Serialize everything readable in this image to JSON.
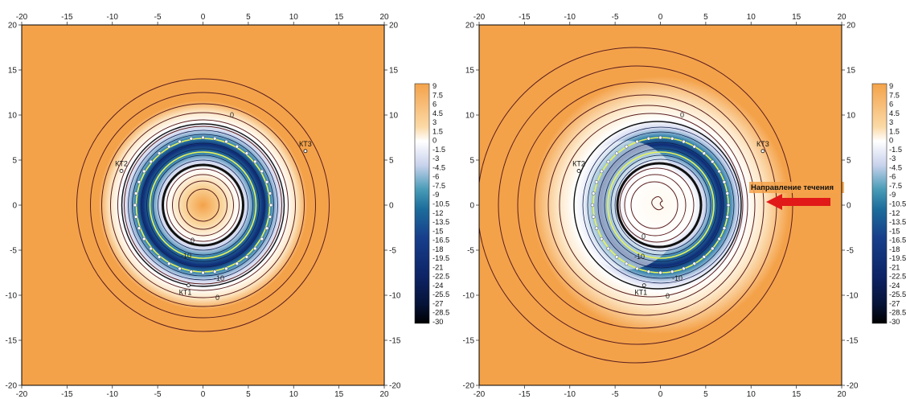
{
  "colors": {
    "background": "#F4A24A",
    "warm_light": "#FFF6E6",
    "white": "#FFFFFF",
    "blue_mid": "#2B7FA8",
    "blue_dark": "#0F2C76",
    "contour_dark": "#5A1E1E",
    "contour_zero": "#111111",
    "yellow_line": "#E8F25A",
    "arrow": "#E11919"
  },
  "chart_data": [
    {
      "type": "heatmap",
      "panel": "left",
      "xlim": [
        -20,
        20
      ],
      "ylim": [
        -20,
        20
      ],
      "x_ticks": [
        "-20",
        "-15",
        "-10",
        "-5",
        "0",
        "5",
        "10",
        "15",
        "20"
      ],
      "y_ticks": [
        "20",
        "15",
        "10",
        "5",
        "0",
        "-5",
        "-10",
        "-15",
        "-20"
      ],
      "field_center": [
        0,
        0
      ],
      "outer_radius": 11.5,
      "ring_radius": 7.5,
      "inner_radius": 4.5,
      "wells": {
        "count": 36,
        "radius": 7.5
      },
      "points": [
        {
          "label": "КТ1",
          "x": -1.6,
          "y": -8.9
        },
        {
          "label": "КТ2",
          "x": -9.0,
          "y": 3.8
        },
        {
          "label": "КТ3",
          "x": 11.3,
          "y": 6.0
        }
      ],
      "contour_labels": [
        "0",
        "0",
        "0",
        "-10",
        "-10"
      ],
      "annotation": ""
    },
    {
      "type": "heatmap",
      "panel": "right",
      "xlim": [
        -20,
        20
      ],
      "ylim": [
        -20,
        20
      ],
      "x_ticks": [
        "-20",
        "-15",
        "-10",
        "-5",
        "0",
        "5",
        "10",
        "15",
        "20"
      ],
      "y_ticks": [
        "20",
        "15",
        "10",
        "5",
        "0",
        "-5",
        "-10",
        "-15",
        "-20"
      ],
      "field_center": [
        -2.5,
        0
      ],
      "outer_radius": 14,
      "ring_radius": 7.5,
      "inner_radius": 4.5,
      "wells": {
        "count": 36,
        "radius": 7.5
      },
      "points": [
        {
          "label": "КТ1",
          "x": -1.8,
          "y": -8.9
        },
        {
          "label": "КТ2",
          "x": -9.0,
          "y": 3.8
        },
        {
          "label": "КТ3",
          "x": 11.3,
          "y": 6.0
        }
      ],
      "contour_labels": [
        "0",
        "0",
        "0",
        "-10",
        "-10"
      ],
      "annotation": "Направление течения"
    }
  ],
  "colorbar": {
    "labels": [
      "9",
      "7.5",
      "6",
      "4.5",
      "3",
      "1.5",
      "0",
      "-1.5",
      "-3",
      "-4.5",
      "-6",
      "-7.5",
      "-9",
      "-10.5",
      "-12",
      "-13.5",
      "-15",
      "-16.5",
      "-18",
      "-19.5",
      "-21",
      "-22.5",
      "-24",
      "-25.5",
      "-27",
      "-28.5",
      "-30"
    ]
  }
}
